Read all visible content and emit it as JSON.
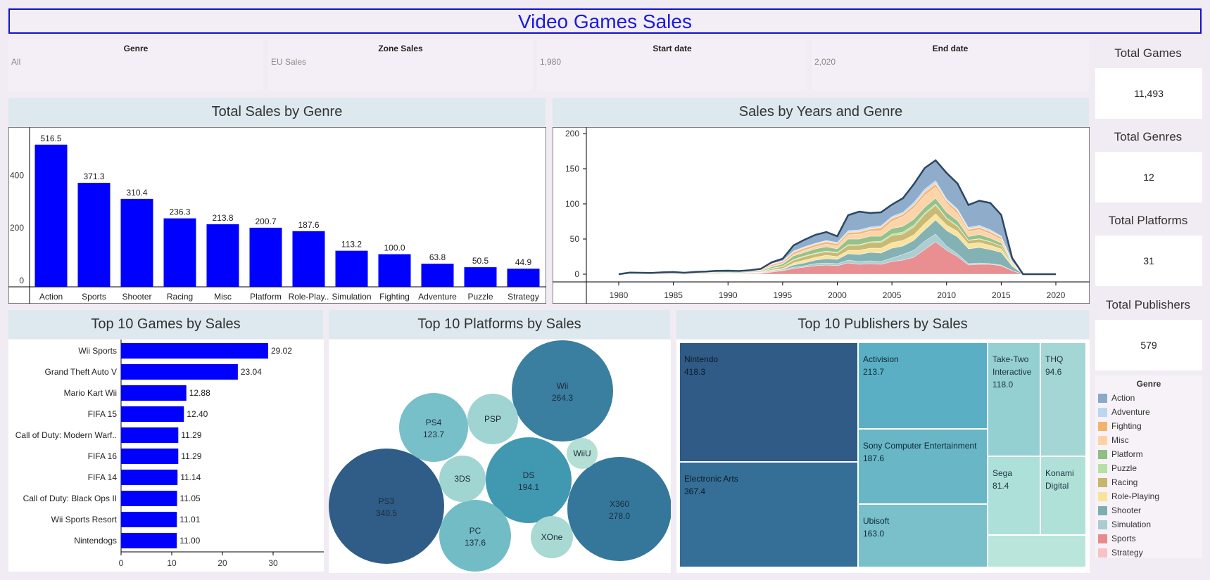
{
  "title": "Video Games Sales",
  "filters": [
    {
      "label": "Genre",
      "value": "All"
    },
    {
      "label": "Zone Sales",
      "value": "EU Sales"
    },
    {
      "label": "Start date",
      "value": "1,980"
    },
    {
      "label": "End date",
      "value": "2,020"
    }
  ],
  "kpis": [
    {
      "label": "Total Games",
      "value": "11,493"
    },
    {
      "label": "Total Genres",
      "value": "12"
    },
    {
      "label": "Total Platforms",
      "value": "31"
    },
    {
      "label": "Total Publishers",
      "value": "579"
    }
  ],
  "panels": {
    "genre_bar": "Total Sales by Genre",
    "years_area": "Sales by Years and Genre",
    "top_games": "Top 10 Games by Sales",
    "top_platforms": "Top 10 Platforms by Sales",
    "top_publishers": "Top 10 Publishers by Sales"
  },
  "legend": {
    "title": "Genre",
    "items": [
      {
        "name": "Action",
        "color": "#8aa9c9"
      },
      {
        "name": "Adventure",
        "color": "#bcd7ec"
      },
      {
        "name": "Fighting",
        "color": "#f3b36b"
      },
      {
        "name": "Misc",
        "color": "#fdd2a6"
      },
      {
        "name": "Platform",
        "color": "#90be84"
      },
      {
        "name": "Puzzle",
        "color": "#b7e0a6"
      },
      {
        "name": "Racing",
        "color": "#c8b66b"
      },
      {
        "name": "Role-Playing",
        "color": "#f8e39a"
      },
      {
        "name": "Shooter",
        "color": "#7eaeb0"
      },
      {
        "name": "Simulation",
        "color": "#a8ccd0"
      },
      {
        "name": "Sports",
        "color": "#e88a8c"
      },
      {
        "name": "Strategy",
        "color": "#f7c2c4"
      }
    ]
  },
  "chart_data": [
    {
      "type": "bar",
      "title": "Total Sales by Genre",
      "categories": [
        "Action",
        "Sports",
        "Shooter",
        "Racing",
        "Misc",
        "Platform",
        "Role-Play..",
        "Simulation",
        "Fighting",
        "Adventure",
        "Puzzle",
        "Strategy"
      ],
      "values": [
        516.5,
        371.3,
        310.4,
        236.3,
        213.8,
        200.7,
        187.6,
        113.2,
        100.0,
        63.8,
        50.5,
        44.9
      ],
      "value_labels": [
        "516.5",
        "371.3",
        "310.4",
        "236.3",
        "213.8",
        "200.7",
        "187.6",
        "113.2",
        "100.0",
        "63.8",
        "50.5",
        "44.9"
      ],
      "yticks": [
        "0",
        "200",
        "400"
      ],
      "ylim": [
        0,
        580
      ],
      "color": "#0000ff"
    },
    {
      "type": "area",
      "title": "Sales by Years and Genre",
      "stacked": true,
      "x": [
        1980,
        1981,
        1982,
        1983,
        1984,
        1985,
        1986,
        1987,
        1988,
        1989,
        1990,
        1991,
        1992,
        1993,
        1994,
        1995,
        1996,
        1997,
        1998,
        1999,
        2000,
        2001,
        2002,
        2003,
        2004,
        2005,
        2006,
        2007,
        2008,
        2009,
        2010,
        2011,
        2012,
        2013,
        2014,
        2015,
        2016,
        2017,
        2018,
        2019,
        2020
      ],
      "series": [
        {
          "name": "Sports",
          "values": [
            0,
            0.5,
            0.5,
            0.3,
            0.8,
            0.8,
            0.5,
            0.8,
            0.8,
            0.8,
            0.5,
            0.5,
            1,
            1,
            3,
            5,
            8,
            10,
            12,
            13,
            12,
            16,
            14,
            15,
            14,
            18,
            20,
            24,
            35,
            46,
            34,
            25,
            13,
            14,
            14,
            12,
            5,
            0,
            0,
            0,
            0
          ]
        },
        {
          "name": "Simulation",
          "values": [
            0,
            0,
            0,
            0,
            0,
            0,
            0,
            0,
            0,
            0,
            0,
            0,
            0,
            0.5,
            1,
            1,
            2,
            2,
            3,
            3,
            3,
            4,
            4,
            4,
            4,
            5,
            8,
            10,
            12,
            11,
            6,
            4,
            2,
            2,
            1,
            1,
            0.3,
            0,
            0,
            0,
            0
          ]
        },
        {
          "name": "Shooter",
          "values": [
            0,
            0.5,
            0.3,
            0.3,
            0.3,
            0.5,
            0.3,
            0.3,
            0.3,
            0.3,
            0.3,
            0.3,
            0.5,
            0.5,
            1,
            1,
            3,
            4,
            5,
            6,
            6,
            9,
            10,
            12,
            12,
            14,
            12,
            14,
            16,
            20,
            22,
            24,
            21,
            22,
            20,
            18,
            6,
            0,
            0,
            0,
            0
          ]
        },
        {
          "name": "Role-Playing",
          "values": [
            0,
            0,
            0,
            0,
            0,
            0,
            0,
            0.3,
            0.5,
            0.5,
            0.5,
            0.5,
            0.5,
            0.5,
            1,
            1,
            3,
            4,
            4,
            5,
            4,
            5,
            6,
            6,
            7,
            8,
            8,
            8,
            9,
            9,
            8,
            8,
            7,
            7,
            6,
            5,
            2,
            0,
            0,
            0,
            0
          ]
        },
        {
          "name": "Racing",
          "values": [
            0,
            0.2,
            0.2,
            0.2,
            0.5,
            0.3,
            0.2,
            0.5,
            0.5,
            0.3,
            0.3,
            0.3,
            0.5,
            0.5,
            2,
            3,
            4,
            5,
            5,
            5,
            5,
            7,
            7,
            8,
            8,
            10,
            9,
            11,
            13,
            12,
            9,
            7,
            5,
            5,
            5,
            4,
            1,
            0,
            0,
            0,
            0
          ]
        },
        {
          "name": "Puzzle",
          "values": [
            0,
            0,
            0,
            0,
            0,
            0,
            0,
            0,
            0.3,
            1,
            1,
            0.5,
            0.5,
            0.3,
            0.5,
            0.5,
            1,
            1,
            1,
            1,
            1,
            1,
            1,
            1,
            2,
            2,
            3,
            3,
            2,
            2,
            1,
            1,
            0.5,
            0.5,
            0.3,
            0.3,
            0.1,
            0,
            0,
            0,
            0
          ]
        },
        {
          "name": "Platform",
          "values": [
            0,
            0.3,
            0.3,
            0.3,
            0.3,
            0.8,
            0.5,
            0.5,
            0.5,
            1,
            1.5,
            1,
            1,
            1,
            2,
            3,
            5,
            5,
            6,
            6,
            5,
            8,
            8,
            8,
            7,
            8,
            8,
            8,
            8,
            8,
            8,
            7,
            5,
            6,
            5,
            4,
            1,
            0,
            0,
            0,
            0
          ]
        },
        {
          "name": "Misc",
          "values": [
            0,
            0.2,
            0.2,
            0.2,
            0.2,
            0.2,
            0.2,
            0.2,
            0.2,
            0.2,
            0.2,
            0.2,
            0.2,
            0.5,
            1,
            1,
            2,
            3,
            3,
            4,
            4,
            6,
            7,
            7,
            8,
            10,
            14,
            16,
            17,
            16,
            13,
            10,
            7,
            7,
            6,
            5,
            1,
            0,
            0,
            0,
            0
          ]
        },
        {
          "name": "Fighting",
          "values": [
            0,
            0,
            0,
            0,
            0,
            0,
            0,
            0.2,
            0.2,
            0.2,
            0.2,
            0.5,
            0.5,
            1,
            2,
            2,
            3,
            3,
            3,
            3,
            3,
            3,
            3,
            3,
            4,
            4,
            3,
            4,
            4,
            4,
            3,
            4,
            3,
            3,
            3,
            3,
            1,
            0,
            0,
            0,
            0
          ]
        },
        {
          "name": "Strategy",
          "values": [
            0,
            0,
            0,
            0,
            0,
            0,
            0,
            0,
            0,
            0,
            0,
            0.2,
            0.2,
            0.5,
            1,
            1,
            1,
            1,
            1,
            1,
            1,
            1,
            1,
            1,
            1,
            1,
            1,
            1,
            2,
            2,
            1,
            1,
            1,
            1,
            1,
            1,
            0.3,
            0,
            0,
            0,
            0
          ]
        },
        {
          "name": "Adventure",
          "values": [
            0,
            0,
            0,
            0,
            0,
            0,
            0,
            0,
            0,
            0,
            0,
            0,
            0.2,
            0.3,
            0.5,
            0.5,
            1,
            1,
            1,
            1,
            1,
            2,
            2,
            2,
            2,
            2,
            2,
            3,
            3,
            3,
            2,
            2,
            2,
            2,
            2,
            1,
            0.5,
            0,
            0,
            0,
            0
          ]
        },
        {
          "name": "Action",
          "values": [
            0,
            0.5,
            0.5,
            0.5,
            0.5,
            0.5,
            0.3,
            0.5,
            0.5,
            0.5,
            0.5,
            0.5,
            0.5,
            1,
            2,
            3,
            8,
            10,
            12,
            12,
            9,
            22,
            26,
            20,
            19,
            17,
            20,
            26,
            30,
            29,
            37,
            36,
            32,
            35,
            38,
            30,
            5,
            0,
            0,
            0,
            0
          ]
        }
      ],
      "yticks": [
        "0",
        "50",
        "100",
        "150",
        "200"
      ],
      "xticks": [
        "1980",
        "1985",
        "1990",
        "1995",
        "2000",
        "2005",
        "2010",
        "2015",
        "2020"
      ],
      "ylim": [
        -12,
        210
      ]
    },
    {
      "type": "bar",
      "orientation": "horizontal",
      "title": "Top 10 Games by Sales",
      "categories": [
        "Wii Sports",
        "Grand Theft Auto V",
        "Mario Kart Wii",
        "FIFA 15",
        "Call of Duty: Modern Warf..",
        "FIFA 16",
        "FIFA 14",
        "Call of Duty: Black Ops II",
        "Wii Sports Resort",
        "Nintendogs"
      ],
      "values": [
        29.02,
        23.04,
        12.88,
        12.4,
        11.29,
        11.29,
        11.14,
        11.05,
        11.01,
        11.0
      ],
      "value_labels": [
        "29.02",
        "23.04",
        "12.88",
        "12.40",
        "11.29",
        "11.29",
        "11.14",
        "11.05",
        "11.01",
        "11.00"
      ],
      "xticks": [
        "0",
        "10",
        "20",
        "30"
      ],
      "xlim": [
        0,
        36
      ],
      "color": "#0000ff"
    },
    {
      "type": "bubble",
      "title": "Top 10 Platforms by Sales",
      "items": [
        {
          "name": "PS3",
          "value": 340.5,
          "label": "340.5",
          "color": "#2f5d87"
        },
        {
          "name": "X360",
          "value": 278.0,
          "label": "278.0",
          "color": "#35779b"
        },
        {
          "name": "Wii",
          "value": 264.3,
          "label": "264.3",
          "color": "#3a7ea0"
        },
        {
          "name": "DS",
          "value": 194.1,
          "label": "194.1",
          "color": "#4198b1"
        },
        {
          "name": "PC",
          "value": 137.6,
          "label": "137.6",
          "color": "#72bcc6"
        },
        {
          "name": "PS4",
          "value": 123.7,
          "label": "123.7",
          "color": "#77bfc9"
        },
        {
          "name": "PSP",
          "value": null,
          "label": "",
          "color": "#9fd4d2"
        },
        {
          "name": "3DS",
          "value": null,
          "label": "",
          "color": "#a0d5d2"
        },
        {
          "name": "XOne",
          "value": null,
          "label": "",
          "color": "#a8d9d3"
        },
        {
          "name": "WiiU",
          "value": null,
          "label": "",
          "color": "#b3dfd5"
        }
      ]
    },
    {
      "type": "treemap",
      "title": "Top 10 Publishers by Sales",
      "items": [
        {
          "name": "Nintendo",
          "value": 418.3,
          "label": "418.3",
          "color": "#2f5b86"
        },
        {
          "name": "Electronic Arts",
          "value": 367.4,
          "label": "367.4",
          "color": "#356f97"
        },
        {
          "name": "Activision",
          "value": 213.7,
          "label": "213.7",
          "color": "#5aafc4"
        },
        {
          "name": "Sony Computer Entertainment",
          "value": 187.6,
          "label": "187.6",
          "color": "#68b6c6"
        },
        {
          "name": "Ubisoft",
          "value": 163.0,
          "label": "163.0",
          "color": "#79c0cb"
        },
        {
          "name": "Take-Two Interactive",
          "value": 118.0,
          "label": "118.0",
          "color": "#94cfd1"
        },
        {
          "name": "THQ",
          "value": 94.6,
          "label": "94.6",
          "color": "#a3d6d4"
        },
        {
          "name": "Sega",
          "value": 81.4,
          "label": "81.4",
          "color": "#ace0d9"
        },
        {
          "name": "Konami Digital",
          "value": null,
          "label": "",
          "color": "#b0e1d8"
        },
        {
          "name": "",
          "value": null,
          "label": "",
          "color": "#b9e5da"
        }
      ]
    }
  ]
}
